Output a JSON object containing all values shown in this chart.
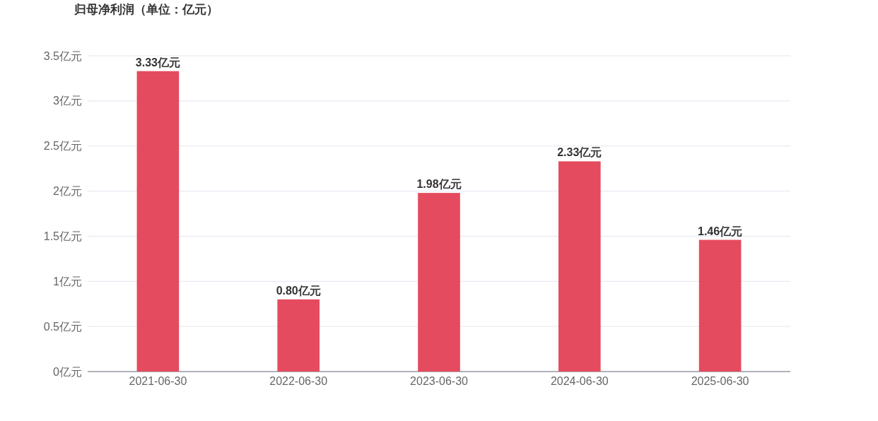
{
  "chart_data": {
    "type": "bar",
    "title": "归母净利润（单位：亿元）",
    "categories": [
      "2021-06-30",
      "2022-06-30",
      "2023-06-30",
      "2024-06-30",
      "2025-06-30"
    ],
    "values": [
      3.33,
      0.8,
      1.98,
      2.33,
      1.46
    ],
    "value_labels": [
      "3.33亿元",
      "0.80亿元",
      "1.98亿元",
      "2.33亿元",
      "1.46亿元"
    ],
    "color": "#e54b5e",
    "ylim": [
      0,
      3.5
    ],
    "yticks": [
      {
        "value": 0,
        "label": "0亿元"
      },
      {
        "value": 0.5,
        "label": "0.5亿元"
      },
      {
        "value": 1,
        "label": "1亿元"
      },
      {
        "value": 1.5,
        "label": "1.5亿元"
      },
      {
        "value": 2,
        "label": "2亿元"
      },
      {
        "value": 2.5,
        "label": "2.5亿元"
      },
      {
        "value": 3,
        "label": "3亿元"
      },
      {
        "value": 3.5,
        "label": "3.5亿元"
      }
    ],
    "grid": "y"
  }
}
